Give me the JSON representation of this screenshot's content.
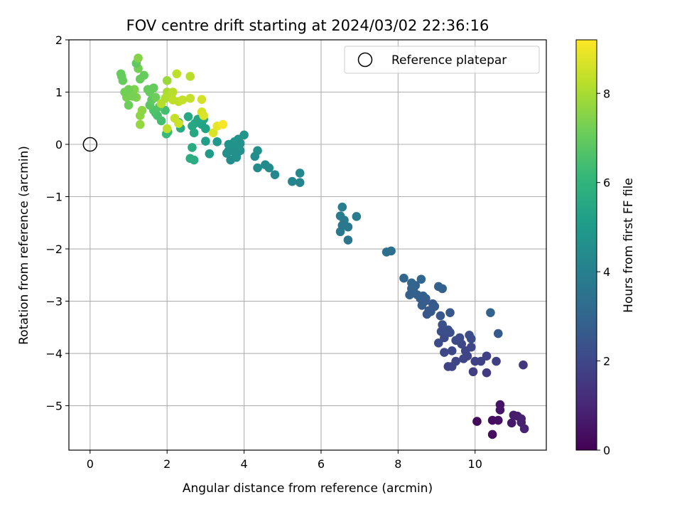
{
  "chart_data": {
    "type": "scatter",
    "title": "FOV centre drift starting at 2024/03/02 22:36:16",
    "xlabel": "Angular distance from reference (arcmin)",
    "ylabel": "Rotation from reference (arcmin)",
    "xlim": [
      -0.55,
      11.85
    ],
    "ylim": [
      -5.85,
      2.0
    ],
    "x_ticks": [
      0,
      2,
      4,
      6,
      8,
      10
    ],
    "y_ticks": [
      2,
      1,
      0,
      -1,
      -2,
      -3,
      -4,
      -5
    ],
    "x_tick_labels": [
      "0",
      "2",
      "4",
      "6",
      "8",
      "10"
    ],
    "y_tick_labels": [
      "2",
      "1",
      "0",
      "−1",
      "−2",
      "−3",
      "−4",
      "−5"
    ],
    "grid": true,
    "legend": {
      "placement": "top-right",
      "entries": [
        "Reference platepar"
      ]
    },
    "reference_point": {
      "x": 0,
      "y": 0,
      "label": "Reference platepar"
    },
    "colorbar": {
      "label": "Hours from first FF file",
      "range": [
        0,
        9.2
      ],
      "ticks": [
        0,
        2,
        4,
        6,
        8
      ],
      "tick_labels": [
        "0",
        "2",
        "4",
        "6",
        "8"
      ],
      "colormap": "viridis"
    },
    "points": [
      {
        "x": 10.05,
        "y": -5.3,
        "t": 0.2
      },
      {
        "x": 10.45,
        "y": -5.28,
        "t": 0.3
      },
      {
        "x": 10.45,
        "y": -5.55,
        "t": 0.3
      },
      {
        "x": 10.6,
        "y": -5.28,
        "t": 0.4
      },
      {
        "x": 10.65,
        "y": -4.98,
        "t": 0.5
      },
      {
        "x": 10.65,
        "y": -5.08,
        "t": 0.5
      },
      {
        "x": 10.95,
        "y": -5.33,
        "t": 0.6
      },
      {
        "x": 11.0,
        "y": -5.18,
        "t": 0.7
      },
      {
        "x": 11.1,
        "y": -5.2,
        "t": 0.7
      },
      {
        "x": 11.2,
        "y": -5.25,
        "t": 0.8
      },
      {
        "x": 11.2,
        "y": -5.32,
        "t": 0.8
      },
      {
        "x": 11.28,
        "y": -5.44,
        "t": 0.9
      },
      {
        "x": 11.25,
        "y": -4.22,
        "t": 1.5
      },
      {
        "x": 10.6,
        "y": -3.62,
        "t": 2.6
      },
      {
        "x": 10.4,
        "y": -3.22,
        "t": 2.9
      },
      {
        "x": 10.55,
        "y": -4.15,
        "t": 1.7
      },
      {
        "x": 10.3,
        "y": -4.05,
        "t": 1.8
      },
      {
        "x": 10.3,
        "y": -4.37,
        "t": 1.6
      },
      {
        "x": 10.15,
        "y": -4.15,
        "t": 1.8
      },
      {
        "x": 10.0,
        "y": -4.15,
        "t": 1.8
      },
      {
        "x": 9.95,
        "y": -4.35,
        "t": 1.7
      },
      {
        "x": 9.9,
        "y": -3.88,
        "t": 2.0
      },
      {
        "x": 9.85,
        "y": -3.65,
        "t": 2.2
      },
      {
        "x": 9.9,
        "y": -3.72,
        "t": 2.1
      },
      {
        "x": 9.8,
        "y": -4.05,
        "t": 1.9
      },
      {
        "x": 9.75,
        "y": -3.95,
        "t": 1.9
      },
      {
        "x": 9.7,
        "y": -4.1,
        "t": 1.9
      },
      {
        "x": 9.65,
        "y": -3.82,
        "t": 2.0
      },
      {
        "x": 9.6,
        "y": -3.7,
        "t": 2.1
      },
      {
        "x": 9.5,
        "y": -4.15,
        "t": 1.9
      },
      {
        "x": 9.5,
        "y": -3.75,
        "t": 2.1
      },
      {
        "x": 9.4,
        "y": -4.25,
        "t": 1.9
      },
      {
        "x": 9.3,
        "y": -4.25,
        "t": 1.9
      },
      {
        "x": 9.4,
        "y": -3.95,
        "t": 2.0
      },
      {
        "x": 9.35,
        "y": -3.6,
        "t": 2.2
      },
      {
        "x": 9.3,
        "y": -3.55,
        "t": 2.2
      },
      {
        "x": 9.35,
        "y": -3.22,
        "t": 2.5
      },
      {
        "x": 9.2,
        "y": -3.98,
        "t": 2.0
      },
      {
        "x": 9.15,
        "y": -3.45,
        "t": 2.3
      },
      {
        "x": 9.12,
        "y": -3.58,
        "t": 2.2
      },
      {
        "x": 9.1,
        "y": -3.28,
        "t": 2.5
      },
      {
        "x": 9.05,
        "y": -3.8,
        "t": 2.1
      },
      {
        "x": 9.2,
        "y": -3.7,
        "t": 2.1
      },
      {
        "x": 9.05,
        "y": -2.72,
        "t": 2.9
      },
      {
        "x": 9.15,
        "y": -2.76,
        "t": 2.8
      },
      {
        "x": 8.95,
        "y": -3.1,
        "t": 2.6
      },
      {
        "x": 8.9,
        "y": -3.05,
        "t": 2.6
      },
      {
        "x": 8.85,
        "y": -3.2,
        "t": 2.5
      },
      {
        "x": 8.8,
        "y": -3.18,
        "t": 2.6
      },
      {
        "x": 8.75,
        "y": -3.25,
        "t": 2.5
      },
      {
        "x": 8.72,
        "y": -2.95,
        "t": 2.7
      },
      {
        "x": 8.7,
        "y": -3.0,
        "t": 2.7
      },
      {
        "x": 8.65,
        "y": -2.9,
        "t": 2.8
      },
      {
        "x": 8.62,
        "y": -3.08,
        "t": 2.7
      },
      {
        "x": 8.58,
        "y": -2.95,
        "t": 2.7
      },
      {
        "x": 8.6,
        "y": -2.58,
        "t": 3.0
      },
      {
        "x": 8.5,
        "y": -2.88,
        "t": 2.8
      },
      {
        "x": 8.45,
        "y": -2.7,
        "t": 2.9
      },
      {
        "x": 8.4,
        "y": -2.8,
        "t": 2.9
      },
      {
        "x": 8.35,
        "y": -2.76,
        "t": 2.9
      },
      {
        "x": 8.3,
        "y": -2.88,
        "t": 2.8
      },
      {
        "x": 8.35,
        "y": -2.65,
        "t": 3.0
      },
      {
        "x": 8.15,
        "y": -2.56,
        "t": 3.0
      },
      {
        "x": 7.7,
        "y": -2.06,
        "t": 3.4
      },
      {
        "x": 7.82,
        "y": -2.04,
        "t": 3.4
      },
      {
        "x": 6.55,
        "y": -1.2,
        "t": 3.9
      },
      {
        "x": 6.5,
        "y": -1.37,
        "t": 3.8
      },
      {
        "x": 6.6,
        "y": -1.45,
        "t": 3.8
      },
      {
        "x": 6.55,
        "y": -1.55,
        "t": 3.7
      },
      {
        "x": 6.5,
        "y": -1.67,
        "t": 3.7
      },
      {
        "x": 6.7,
        "y": -1.58,
        "t": 3.7
      },
      {
        "x": 6.7,
        "y": -1.83,
        "t": 3.6
      },
      {
        "x": 6.92,
        "y": -1.38,
        "t": 3.8
      },
      {
        "x": 5.45,
        "y": -0.55,
        "t": 4.3
      },
      {
        "x": 5.45,
        "y": -0.73,
        "t": 4.2
      },
      {
        "x": 5.25,
        "y": -0.71,
        "t": 4.2
      },
      {
        "x": 4.8,
        "y": -0.58,
        "t": 4.3
      },
      {
        "x": 4.65,
        "y": -0.45,
        "t": 4.4
      },
      {
        "x": 4.55,
        "y": -0.39,
        "t": 4.4
      },
      {
        "x": 4.35,
        "y": -0.45,
        "t": 4.4
      },
      {
        "x": 4.35,
        "y": -0.12,
        "t": 4.6
      },
      {
        "x": 4.28,
        "y": -0.23,
        "t": 4.5
      },
      {
        "x": 4.0,
        "y": 0.18,
        "t": 4.8
      },
      {
        "x": 3.85,
        "y": 0.1,
        "t": 4.8
      },
      {
        "x": 3.9,
        "y": -0.12,
        "t": 4.6
      },
      {
        "x": 3.8,
        "y": -0.2,
        "t": 4.6
      },
      {
        "x": 3.75,
        "y": 0.05,
        "t": 4.8
      },
      {
        "x": 3.7,
        "y": -0.05,
        "t": 4.7
      },
      {
        "x": 3.65,
        "y": -0.3,
        "t": 4.5
      },
      {
        "x": 3.6,
        "y": -0.12,
        "t": 4.6
      },
      {
        "x": 3.55,
        "y": -0.17,
        "t": 4.6
      },
      {
        "x": 3.6,
        "y": 0.0,
        "t": 4.7
      },
      {
        "x": 3.9,
        "y": 0.02,
        "t": 4.7
      },
      {
        "x": 3.8,
        "y": -0.25,
        "t": 4.6
      },
      {
        "x": 3.85,
        "y": -0.05,
        "t": 4.7
      },
      {
        "x": 3.75,
        "y": -0.15,
        "t": 4.6
      },
      {
        "x": 3.3,
        "y": 0.05,
        "t": 4.9
      },
      {
        "x": 3.1,
        "y": -0.18,
        "t": 5.0
      },
      {
        "x": 3.0,
        "y": 0.06,
        "t": 5.1
      },
      {
        "x": 3.0,
        "y": 0.3,
        "t": 5.3
      },
      {
        "x": 2.9,
        "y": 0.38,
        "t": 5.3
      },
      {
        "x": 2.95,
        "y": 0.48,
        "t": 5.4
      },
      {
        "x": 2.8,
        "y": 0.48,
        "t": 5.4
      },
      {
        "x": 2.72,
        "y": 0.4,
        "t": 5.4
      },
      {
        "x": 2.65,
        "y": 0.35,
        "t": 5.5
      },
      {
        "x": 2.7,
        "y": 0.22,
        "t": 5.5
      },
      {
        "x": 2.55,
        "y": 0.53,
        "t": 5.5
      },
      {
        "x": 2.35,
        "y": 0.31,
        "t": 5.6
      },
      {
        "x": 2.3,
        "y": 0.42,
        "t": 5.6
      },
      {
        "x": 2.65,
        "y": -0.06,
        "t": 5.6
      },
      {
        "x": 2.6,
        "y": -0.27,
        "t": 5.7
      },
      {
        "x": 2.7,
        "y": -0.3,
        "t": 5.7
      },
      {
        "x": 2.02,
        "y": 0.24,
        "t": 6.2
      },
      {
        "x": 1.98,
        "y": 0.2,
        "t": 6.2
      },
      {
        "x": 1.95,
        "y": 0.65,
        "t": 6.4
      },
      {
        "x": 1.85,
        "y": 0.45,
        "t": 6.4
      },
      {
        "x": 1.75,
        "y": 0.55,
        "t": 6.5
      },
      {
        "x": 1.7,
        "y": 0.6,
        "t": 6.5
      },
      {
        "x": 1.65,
        "y": 0.65,
        "t": 6.6
      },
      {
        "x": 1.8,
        "y": 0.72,
        "t": 6.7
      },
      {
        "x": 1.55,
        "y": 0.75,
        "t": 6.8
      },
      {
        "x": 1.6,
        "y": 0.85,
        "t": 6.9
      },
      {
        "x": 1.55,
        "y": 1.0,
        "t": 7.0
      },
      {
        "x": 1.5,
        "y": 1.05,
        "t": 7.0
      },
      {
        "x": 1.65,
        "y": 1.08,
        "t": 7.0
      },
      {
        "x": 1.7,
        "y": 0.9,
        "t": 7.1
      },
      {
        "x": 1.4,
        "y": 1.32,
        "t": 7.0
      },
      {
        "x": 1.3,
        "y": 1.25,
        "t": 7.0
      },
      {
        "x": 1.25,
        "y": 1.45,
        "t": 7.2
      },
      {
        "x": 1.2,
        "y": 1.55,
        "t": 6.9
      },
      {
        "x": 1.25,
        "y": 1.65,
        "t": 7.5
      },
      {
        "x": 1.3,
        "y": 0.38,
        "t": 7.7
      },
      {
        "x": 1.3,
        "y": 0.55,
        "t": 7.6
      },
      {
        "x": 1.35,
        "y": 0.65,
        "t": 7.6
      },
      {
        "x": 1.2,
        "y": 0.9,
        "t": 7.4
      },
      {
        "x": 1.15,
        "y": 1.05,
        "t": 7.4
      },
      {
        "x": 1.1,
        "y": 0.92,
        "t": 7.3
      },
      {
        "x": 1.0,
        "y": 1.05,
        "t": 7.2
      },
      {
        "x": 0.95,
        "y": 0.9,
        "t": 7.3
      },
      {
        "x": 0.9,
        "y": 1.0,
        "t": 7.2
      },
      {
        "x": 1.0,
        "y": 0.75,
        "t": 7.1
      },
      {
        "x": 0.8,
        "y": 1.35,
        "t": 7.0
      },
      {
        "x": 0.82,
        "y": 1.3,
        "t": 7.0
      },
      {
        "x": 0.85,
        "y": 1.22,
        "t": 7.0
      },
      {
        "x": 2.0,
        "y": 1.22,
        "t": 7.8
      },
      {
        "x": 2.25,
        "y": 1.35,
        "t": 8.3
      },
      {
        "x": 2.6,
        "y": 1.3,
        "t": 8.2
      },
      {
        "x": 2.0,
        "y": 1.0,
        "t": 8.0
      },
      {
        "x": 2.1,
        "y": 0.95,
        "t": 8.1
      },
      {
        "x": 2.15,
        "y": 1.0,
        "t": 8.2
      },
      {
        "x": 2.15,
        "y": 0.85,
        "t": 8.3
      },
      {
        "x": 2.3,
        "y": 0.82,
        "t": 8.3
      },
      {
        "x": 2.4,
        "y": 0.85,
        "t": 8.4
      },
      {
        "x": 2.6,
        "y": 0.88,
        "t": 8.4
      },
      {
        "x": 2.9,
        "y": 0.86,
        "t": 8.6
      },
      {
        "x": 1.85,
        "y": 0.78,
        "t": 8.2
      },
      {
        "x": 1.95,
        "y": 0.88,
        "t": 8.1
      },
      {
        "x": 2.2,
        "y": 0.5,
        "t": 8.4
      },
      {
        "x": 2.3,
        "y": 0.4,
        "t": 8.5
      },
      {
        "x": 2.0,
        "y": 0.3,
        "t": 8.3
      },
      {
        "x": 2.9,
        "y": 0.62,
        "t": 8.6
      },
      {
        "x": 2.95,
        "y": 0.55,
        "t": 8.7
      },
      {
        "x": 3.2,
        "y": 0.22,
        "t": 8.7
      },
      {
        "x": 3.3,
        "y": 0.35,
        "t": 8.9
      },
      {
        "x": 3.45,
        "y": 0.38,
        "t": 9.1
      }
    ]
  }
}
